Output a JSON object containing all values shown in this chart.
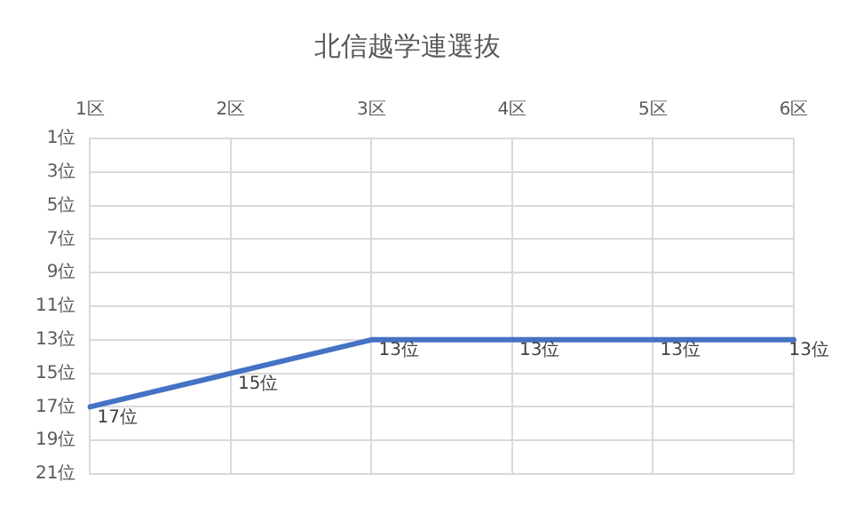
{
  "chart_data": {
    "type": "line",
    "title": "北信越学連選抜",
    "categories": [
      "1区",
      "2区",
      "3区",
      "4区",
      "5区",
      "6区"
    ],
    "series": [
      {
        "color": "#4472c4",
        "values": [
          17,
          15,
          13,
          13,
          13,
          13
        ],
        "value_labels": [
          "17位",
          "15位",
          "13位",
          "13位",
          "13位",
          "13位"
        ]
      }
    ],
    "ylim": [
      21,
      1
    ],
    "yticks": [
      {
        "value": 1,
        "label": "1位"
      },
      {
        "value": 3,
        "label": "3位"
      },
      {
        "value": 5,
        "label": "5位"
      },
      {
        "value": 7,
        "label": "7位"
      },
      {
        "value": 9,
        "label": "9位"
      },
      {
        "value": 11,
        "label": "11位"
      },
      {
        "value": 13,
        "label": "13位"
      },
      {
        "value": 15,
        "label": "15位"
      },
      {
        "value": 17,
        "label": "17位"
      },
      {
        "value": 19,
        "label": "19位"
      },
      {
        "value": 21,
        "label": "21位"
      }
    ],
    "grid": true,
    "legend": false,
    "marker": "none",
    "line_style": "solid"
  }
}
